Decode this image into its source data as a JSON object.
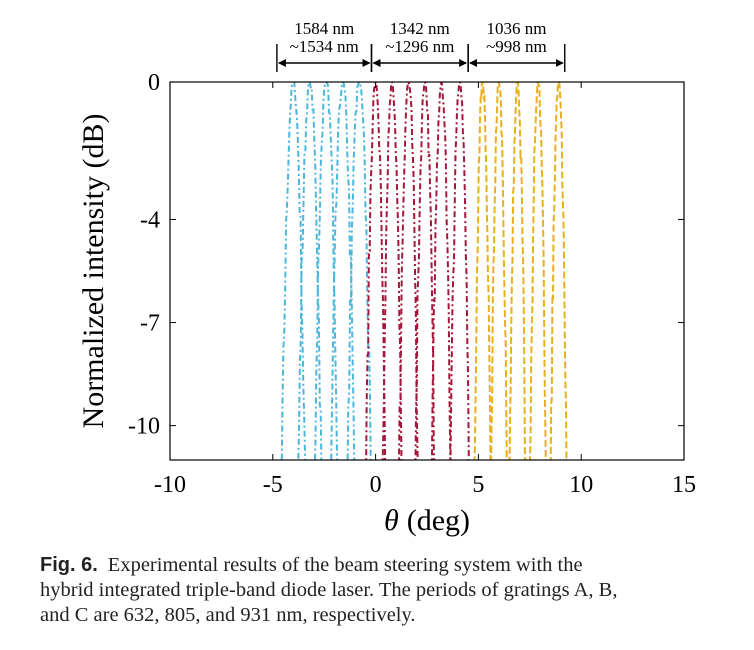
{
  "chart_data": {
    "type": "line",
    "xlabel_symbol": "θ",
    "xlabel_unit": "(deg)",
    "ylabel": "Normalized intensity (dB)",
    "xlim": [
      -10,
      15
    ],
    "ylim": [
      -11,
      0
    ],
    "x_ticks": [
      -10,
      -5,
      0,
      5,
      10,
      15
    ],
    "y_ticks": [
      0,
      -4,
      -7,
      -10
    ],
    "grid": false,
    "colors": {
      "blue": "#4bb6dc",
      "red": "#a3173a",
      "yellow": "#e8b020"
    },
    "bands": [
      {
        "color": "#4bb6dc",
        "wavelength_start": "1584 nm",
        "wavelength_end": "~1534 nm",
        "range_deg": [
          -4.8,
          -0.2
        ],
        "peaks_deg": [
          -4.0,
          -3.2,
          -2.4,
          -1.6,
          -0.8
        ],
        "peak_width_deg": 1.1
      },
      {
        "color": "#a3173a",
        "wavelength_start": "1342 nm",
        "wavelength_end": "~1296 nm",
        "range_deg": [
          -0.2,
          4.5
        ],
        "peaks_deg": [
          0.0,
          0.8,
          1.6,
          2.4,
          3.2,
          4.1
        ],
        "peak_width_deg": 0.9
      },
      {
        "color": "#e8b020",
        "wavelength_start": "1036 nm",
        "wavelength_end": "~998 nm",
        "range_deg": [
          4.5,
          9.2
        ],
        "peaks_deg": [
          5.2,
          6.0,
          6.9,
          7.9,
          8.9
        ],
        "peak_width_deg": 0.75
      }
    ]
  },
  "caption": {
    "label": "Fig. 6.",
    "lines": [
      "Experimental results of the beam steering system with the",
      "hybrid integrated triple-band diode laser. The periods of gratings A, B,",
      "and C are 632, 805, and 931 nm, respectively."
    ]
  }
}
